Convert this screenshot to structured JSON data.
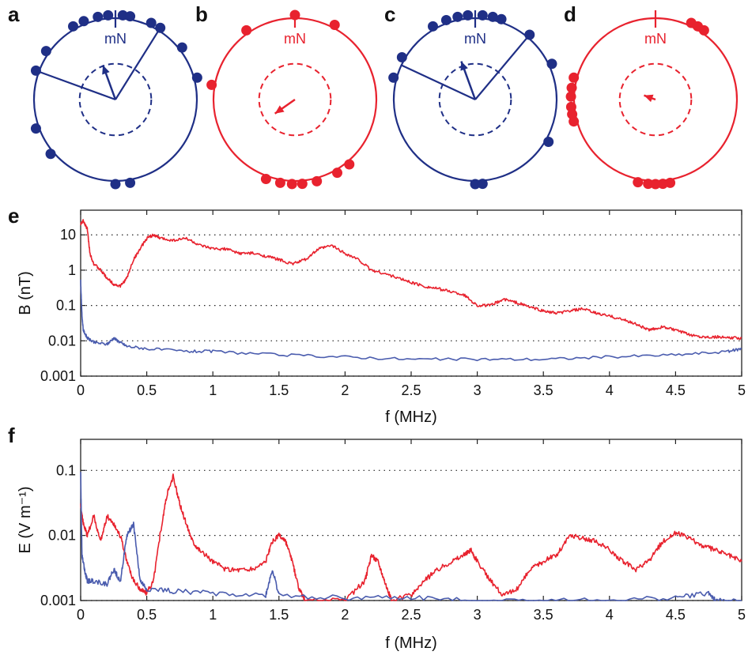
{
  "colors": {
    "blue": "#1f2f86",
    "red": "#e8222e",
    "trace_blue": "#4a5cae",
    "trace_red": "#e8222e"
  },
  "chart_data": [
    {
      "type": "scatter",
      "panel": "a",
      "label": "mN",
      "color": "blue",
      "dot_angles_deg": [
        -70,
        -55,
        -30,
        -22,
        -12,
        -5,
        5,
        10,
        25,
        32,
        52,
        75,
        -110,
        -130,
        170,
        180
      ],
      "mean_vector_angle_deg": -20,
      "mean_vector_length": 0.45,
      "sector_edges_deg": [
        -70,
        32
      ]
    },
    {
      "type": "scatter",
      "panel": "b",
      "label": "mN",
      "color": "red",
      "dot_angles_deg": [
        -80,
        -35,
        0,
        28,
        -160,
        -170,
        -178,
        165,
        175,
        150,
        140
      ],
      "mean_vector_angle_deg": -125,
      "mean_vector_length": 0.3
    },
    {
      "type": "scatter",
      "panel": "c",
      "label": "mN",
      "color": "blue",
      "dot_angles_deg": [
        -75,
        -60,
        -30,
        -20,
        -12,
        -5,
        5,
        12,
        18,
        40,
        65,
        120,
        180,
        175
      ],
      "mean_vector_angle_deg": -20,
      "mean_vector_length": 0.5,
      "sector_edges_deg": [
        -65,
        40
      ]
    },
    {
      "type": "scatter",
      "panel": "d",
      "label": "mN",
      "color": "red",
      "dot_angles_deg": [
        25,
        30,
        35,
        -75,
        -82,
        -88,
        -95,
        -100,
        -105,
        170,
        175,
        180,
        -175,
        -168
      ],
      "mean_vector_angle_deg": -70,
      "mean_vector_length": 0.15
    },
    {
      "type": "line",
      "panel": "e",
      "xlabel": "f (MHz)",
      "ylabel": "B (nT)",
      "xlim": [
        0,
        5
      ],
      "ylim": [
        0.001,
        50
      ],
      "yscale": "log",
      "xticks": [
        "0",
        "0.5",
        "1",
        "1.5",
        "2",
        "2.5",
        "3",
        "3.5",
        "4",
        "4.5",
        "5"
      ],
      "yticks": [
        "0.001",
        "0.01",
        "0.1",
        "1",
        "10"
      ],
      "grid": "dotted",
      "series": [
        {
          "color": "red",
          "x": [
            0,
            0.02,
            0.05,
            0.07,
            0.1,
            0.15,
            0.2,
            0.25,
            0.3,
            0.35,
            0.4,
            0.45,
            0.5,
            0.55,
            0.6,
            0.7,
            0.8,
            0.9,
            1.0,
            1.1,
            1.2,
            1.3,
            1.4,
            1.5,
            1.6,
            1.7,
            1.8,
            1.9,
            2.0,
            2.1,
            2.2,
            2.3,
            2.4,
            2.5,
            2.6,
            2.7,
            2.8,
            2.9,
            3.0,
            3.1,
            3.2,
            3.3,
            3.4,
            3.5,
            3.6,
            3.7,
            3.8,
            3.9,
            4.0,
            4.1,
            4.2,
            4.3,
            4.4,
            4.5,
            4.6,
            4.7,
            4.8,
            4.9,
            5.0
          ],
          "y": [
            20,
            25,
            15,
            3,
            1.5,
            1.0,
            0.6,
            0.4,
            0.35,
            0.6,
            2,
            4,
            8,
            10,
            8,
            7,
            8,
            5,
            4,
            4,
            3,
            3,
            2.5,
            2,
            1.5,
            2,
            4,
            5,
            3,
            2,
            1,
            0.8,
            0.6,
            0.45,
            0.35,
            0.3,
            0.25,
            0.2,
            0.1,
            0.1,
            0.15,
            0.12,
            0.09,
            0.07,
            0.06,
            0.07,
            0.08,
            0.06,
            0.05,
            0.04,
            0.03,
            0.02,
            0.025,
            0.02,
            0.015,
            0.013,
            0.013,
            0.012,
            0.012
          ]
        },
        {
          "color": "trace_blue",
          "x": [
            0,
            0.01,
            0.02,
            0.05,
            0.1,
            0.2,
            0.25,
            0.3,
            0.35,
            0.5,
            0.8,
            1.0,
            1.5,
            2.0,
            2.5,
            3.0,
            3.5,
            4.0,
            4.5,
            4.9,
            5.0
          ],
          "y": [
            0.5,
            0.05,
            0.02,
            0.012,
            0.009,
            0.008,
            0.012,
            0.009,
            0.007,
            0.006,
            0.005,
            0.005,
            0.004,
            0.0035,
            0.003,
            0.003,
            0.003,
            0.0035,
            0.004,
            0.005,
            0.006
          ]
        }
      ]
    },
    {
      "type": "line",
      "panel": "f",
      "xlabel": "f (MHz)",
      "ylabel": "E (V m⁻¹)",
      "xlim": [
        0,
        5
      ],
      "ylim": [
        0.001,
        0.3
      ],
      "yscale": "log",
      "xticks": [
        "0",
        "0.5",
        "1",
        "1.5",
        "2",
        "2.5",
        "3",
        "3.5",
        "4",
        "4.5",
        "5"
      ],
      "yticks": [
        "0.001",
        "0.01",
        "0.1"
      ],
      "grid": "dotted",
      "series": [
        {
          "color": "red",
          "x": [
            0,
            0.02,
            0.05,
            0.1,
            0.15,
            0.2,
            0.25,
            0.3,
            0.35,
            0.4,
            0.45,
            0.5,
            0.55,
            0.6,
            0.65,
            0.7,
            0.75,
            0.8,
            0.85,
            0.9,
            1.0,
            1.1,
            1.2,
            1.3,
            1.4,
            1.45,
            1.5,
            1.55,
            1.6,
            1.65,
            1.7,
            2.0,
            2.15,
            2.2,
            2.25,
            2.3,
            2.35,
            2.5,
            2.6,
            2.7,
            2.8,
            2.9,
            2.95,
            3.0,
            3.1,
            3.2,
            3.3,
            3.4,
            3.5,
            3.6,
            3.7,
            3.8,
            3.9,
            4.0,
            4.1,
            4.2,
            4.3,
            4.4,
            4.5,
            4.6,
            4.7,
            4.8,
            4.9,
            5.0
          ],
          "y": [
            0.03,
            0.015,
            0.01,
            0.02,
            0.008,
            0.02,
            0.015,
            0.01,
            0.004,
            0.002,
            0.0015,
            0.0013,
            0.002,
            0.01,
            0.04,
            0.08,
            0.03,
            0.015,
            0.008,
            0.006,
            0.004,
            0.003,
            0.003,
            0.003,
            0.004,
            0.008,
            0.01,
            0.008,
            0.004,
            0.0015,
            0.001,
            0.001,
            0.002,
            0.005,
            0.004,
            0.002,
            0.001,
            0.0012,
            0.002,
            0.003,
            0.004,
            0.005,
            0.006,
            0.004,
            0.002,
            0.0012,
            0.0015,
            0.003,
            0.004,
            0.005,
            0.01,
            0.009,
            0.008,
            0.006,
            0.004,
            0.003,
            0.004,
            0.008,
            0.011,
            0.009,
            0.007,
            0.006,
            0.005,
            0.004
          ]
        },
        {
          "color": "trace_blue",
          "x": [
            0,
            0.01,
            0.03,
            0.05,
            0.1,
            0.2,
            0.25,
            0.3,
            0.35,
            0.4,
            0.45,
            0.5,
            0.7,
            1.0,
            1.4,
            1.45,
            1.5,
            2.0,
            2.5,
            3.0,
            3.5,
            4.0,
            4.5,
            4.75,
            4.8,
            5.0
          ],
          "y": [
            0.1,
            0.005,
            0.003,
            0.002,
            0.002,
            0.0018,
            0.003,
            0.002,
            0.01,
            0.015,
            0.002,
            0.0015,
            0.0014,
            0.0013,
            0.0012,
            0.003,
            0.0012,
            0.0011,
            0.0011,
            0.001,
            0.001,
            0.001,
            0.0011,
            0.0013,
            0.001,
            0.001
          ]
        }
      ]
    }
  ],
  "panels": {
    "a": "a",
    "b": "b",
    "c": "c",
    "d": "d",
    "e": "e",
    "f": "f"
  }
}
